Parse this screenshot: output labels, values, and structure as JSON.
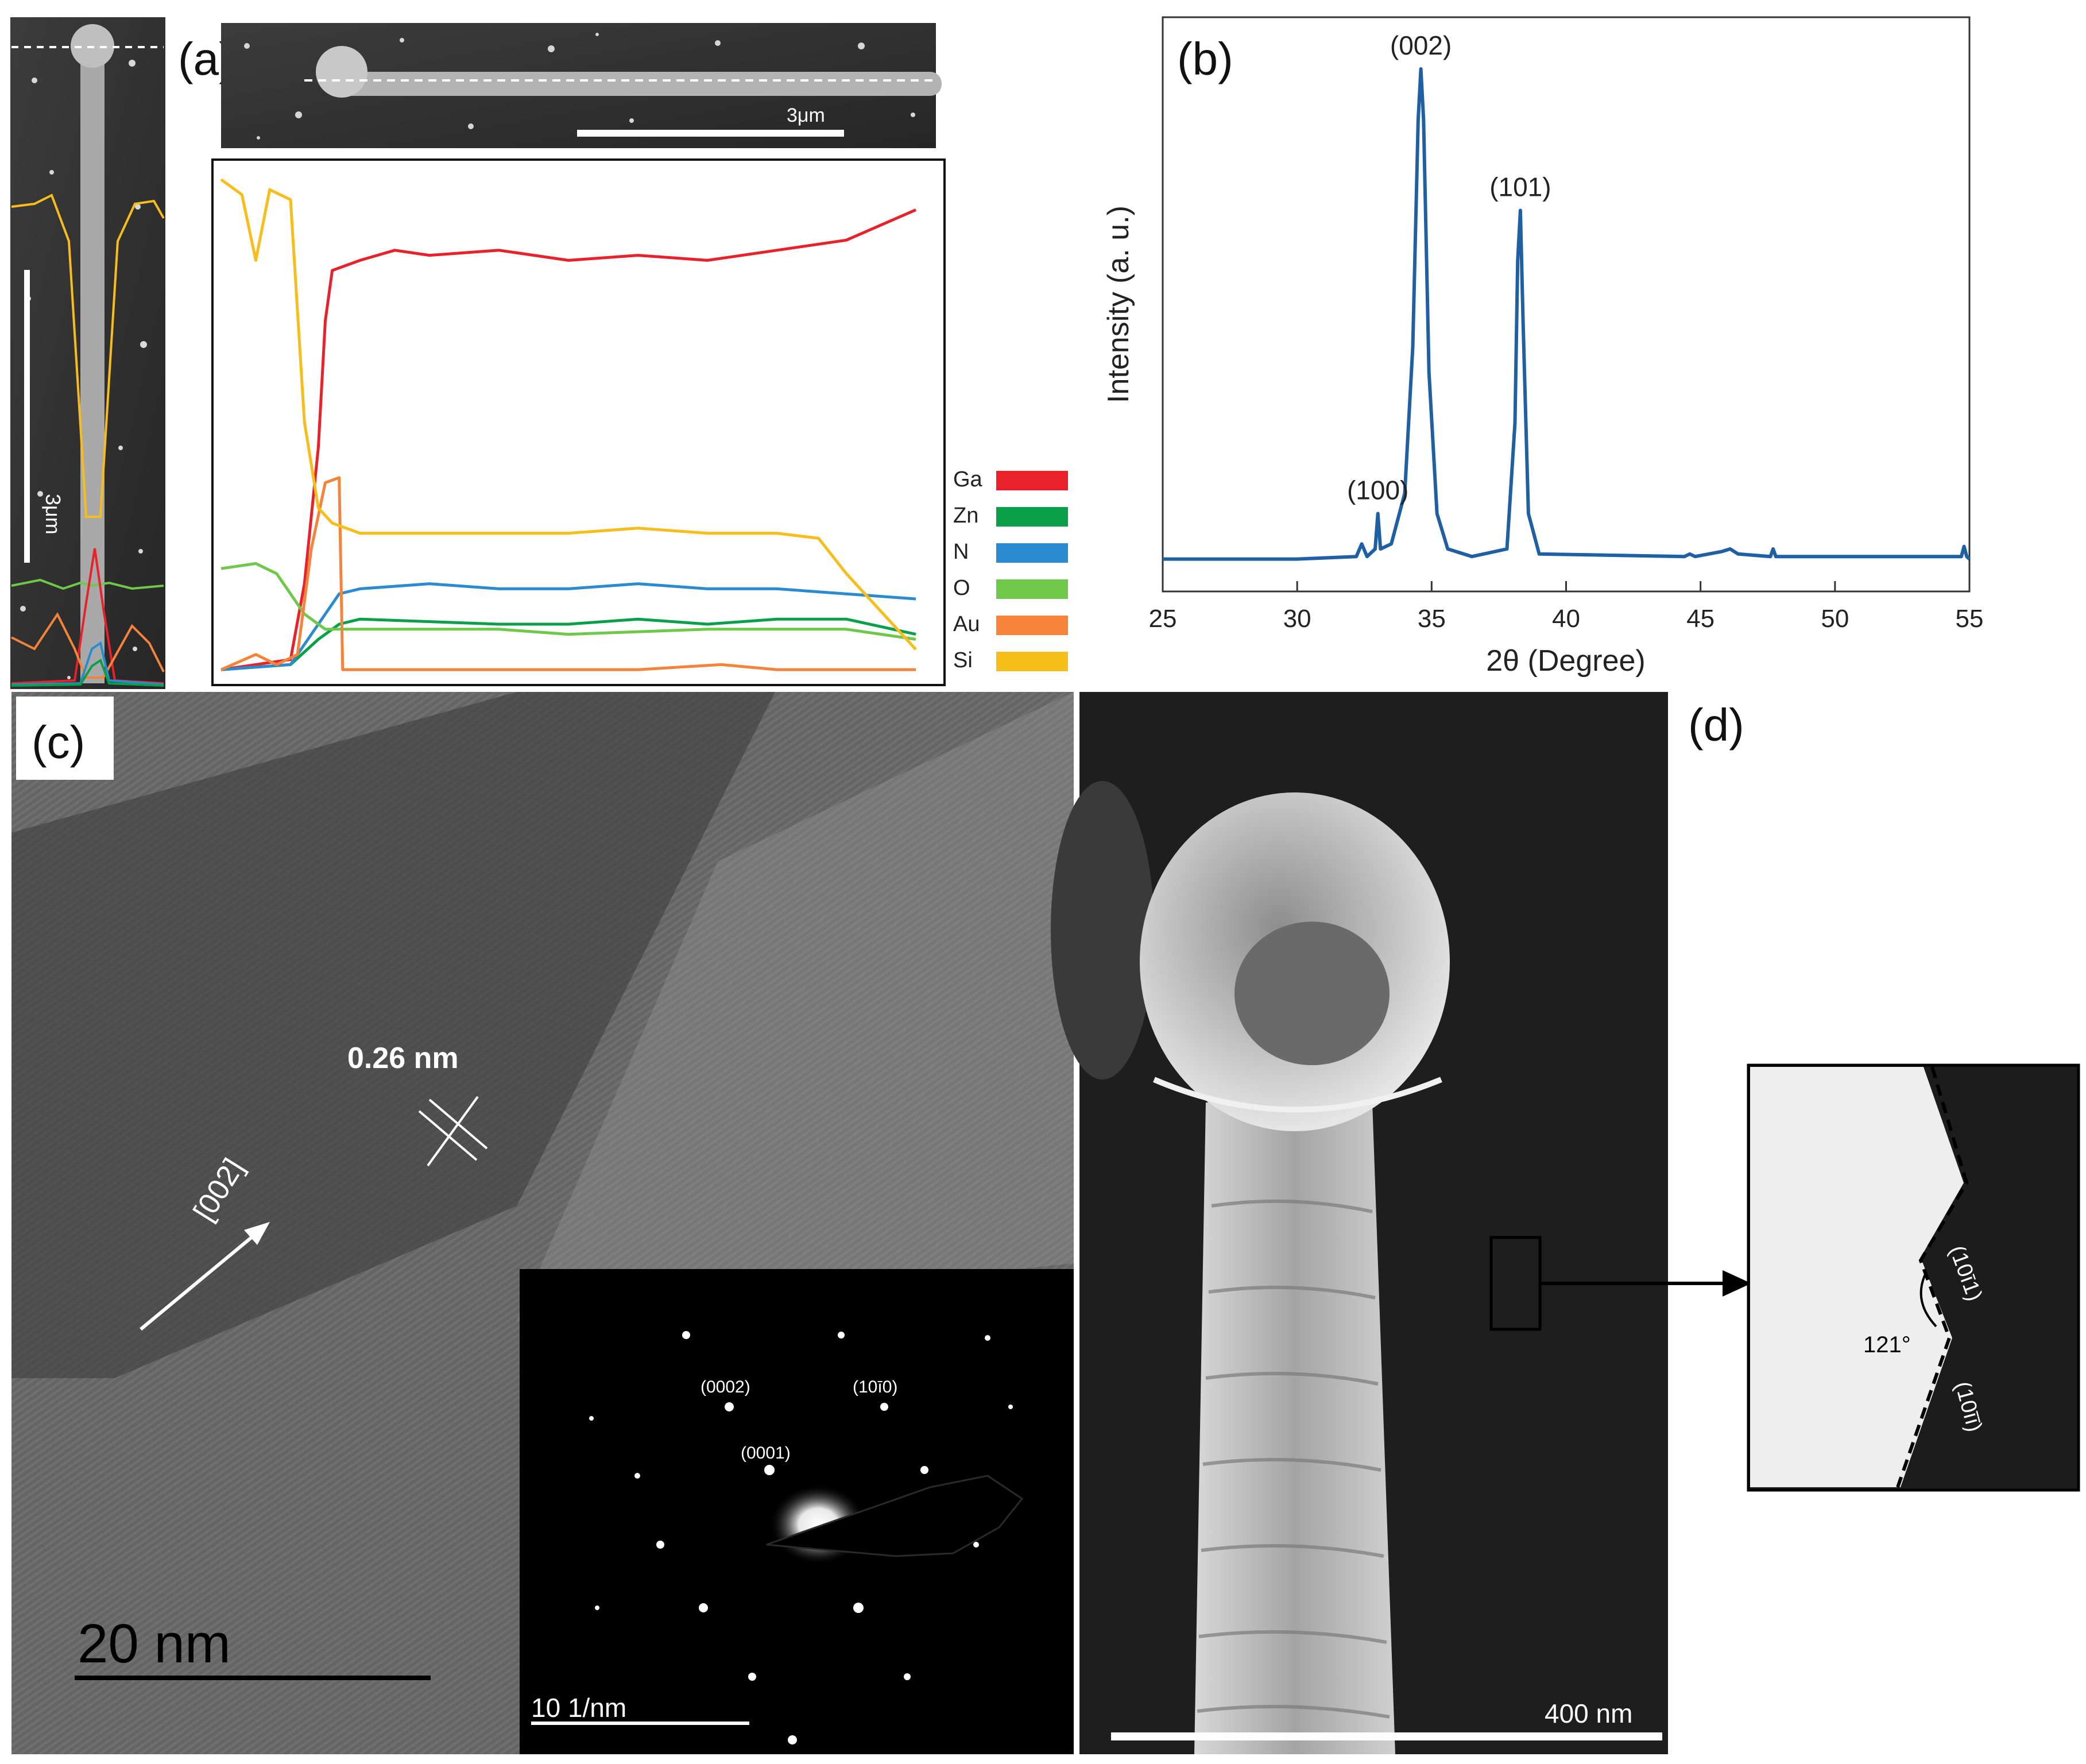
{
  "panels": {
    "a": {
      "label": "(a)",
      "scale_label_top": "3μm",
      "scale_label_side": "3μm",
      "legend": [
        {
          "name": "Ga",
          "color": "#e8212b"
        },
        {
          "name": "Zn",
          "color": "#0aa04a"
        },
        {
          "name": "N",
          "color": "#2a8bd0"
        },
        {
          "name": "O",
          "color": "#6fc84a"
        },
        {
          "name": "Au",
          "color": "#f5843a"
        },
        {
          "name": "Si",
          "color": "#f7bd1a"
        }
      ]
    },
    "b": {
      "label": "(b)"
    },
    "c": {
      "label": "(c)",
      "spacing_label": "0.26 nm",
      "direction_label": "[002]",
      "scale_label": "20 nm",
      "saed": {
        "spots": [
          "(0002)",
          "(10ī0)",
          "(0001)"
        ],
        "scale_label": "10 1/nm"
      }
    },
    "d": {
      "label": "(d)",
      "scale_label": "400 nm",
      "inset": {
        "angle_label": "121°",
        "facet_top": "(10ī1)",
        "facet_bottom": "(10īī)"
      }
    }
  },
  "chart_data": {
    "type": "line",
    "title": "",
    "xlabel": "2θ (Degree)",
    "ylabel": "Intensity (a. u.)",
    "xlim": [
      25,
      55
    ],
    "xticks": [
      25,
      30,
      35,
      40,
      45,
      50,
      55
    ],
    "yticks_shown": false,
    "grid": false,
    "series": [
      {
        "color": "#1f5fa3",
        "points": [
          [
            25,
            0.03
          ],
          [
            30,
            0.03
          ],
          [
            32.2,
            0.035
          ],
          [
            32.4,
            0.06
          ],
          [
            32.6,
            0.035
          ],
          [
            32.9,
            0.05
          ],
          [
            33.0,
            0.12
          ],
          [
            33.1,
            0.05
          ],
          [
            33.5,
            0.06
          ],
          [
            34.0,
            0.16
          ],
          [
            34.3,
            0.45
          ],
          [
            34.5,
            0.9
          ],
          [
            34.6,
            1.0
          ],
          [
            34.7,
            0.9
          ],
          [
            34.9,
            0.4
          ],
          [
            35.2,
            0.12
          ],
          [
            35.6,
            0.05
          ],
          [
            36.5,
            0.035
          ],
          [
            37.8,
            0.05
          ],
          [
            38.1,
            0.3
          ],
          [
            38.2,
            0.62
          ],
          [
            38.3,
            0.72
          ],
          [
            38.4,
            0.5
          ],
          [
            38.6,
            0.12
          ],
          [
            39,
            0.04
          ],
          [
            44.4,
            0.035
          ],
          [
            44.6,
            0.04
          ],
          [
            44.8,
            0.035
          ],
          [
            45.8,
            0.045
          ],
          [
            46.1,
            0.05
          ],
          [
            46.4,
            0.04
          ],
          [
            47.6,
            0.035
          ],
          [
            47.7,
            0.05
          ],
          [
            47.8,
            0.035
          ],
          [
            54.7,
            0.035
          ],
          [
            54.8,
            0.055
          ],
          [
            54.9,
            0.035
          ],
          [
            55,
            0.03
          ]
        ]
      }
    ],
    "annotations": [
      {
        "text": "(100)",
        "x": 33.0
      },
      {
        "text": "(002)",
        "x": 34.6
      },
      {
        "text": "(101)",
        "x": 38.3
      }
    ]
  },
  "linescan_data": {
    "type": "line",
    "xlim": [
      0,
      100
    ],
    "ylim": [
      0,
      100
    ],
    "series": [
      {
        "name": "Ga",
        "points": [
          [
            0,
            1
          ],
          [
            10,
            3
          ],
          [
            12,
            18
          ],
          [
            14,
            45
          ],
          [
            15,
            70
          ],
          [
            16,
            80
          ],
          [
            20,
            82
          ],
          [
            25,
            84
          ],
          [
            30,
            83
          ],
          [
            40,
            84
          ],
          [
            50,
            82
          ],
          [
            60,
            83
          ],
          [
            70,
            82
          ],
          [
            80,
            84
          ],
          [
            90,
            86
          ],
          [
            100,
            92
          ]
        ]
      },
      {
        "name": "Zn",
        "points": [
          [
            0,
            1
          ],
          [
            10,
            2
          ],
          [
            14,
            7
          ],
          [
            17,
            10
          ],
          [
            20,
            11
          ],
          [
            40,
            10
          ],
          [
            50,
            10
          ],
          [
            60,
            11
          ],
          [
            70,
            10
          ],
          [
            80,
            11
          ],
          [
            90,
            11
          ],
          [
            100,
            8
          ]
        ]
      },
      {
        "name": "N",
        "points": [
          [
            0,
            1
          ],
          [
            10,
            2
          ],
          [
            14,
            10
          ],
          [
            17,
            16
          ],
          [
            20,
            17
          ],
          [
            30,
            18
          ],
          [
            40,
            17
          ],
          [
            50,
            17
          ],
          [
            60,
            18
          ],
          [
            70,
            17
          ],
          [
            80,
            17
          ],
          [
            90,
            16
          ],
          [
            100,
            15
          ]
        ]
      },
      {
        "name": "O",
        "points": [
          [
            0,
            21
          ],
          [
            5,
            22
          ],
          [
            8,
            20
          ],
          [
            12,
            12
          ],
          [
            15,
            9
          ],
          [
            20,
            9
          ],
          [
            40,
            9
          ],
          [
            50,
            8
          ],
          [
            70,
            9
          ],
          [
            90,
            9
          ],
          [
            100,
            7
          ]
        ]
      },
      {
        "name": "Au",
        "points": [
          [
            0,
            1
          ],
          [
            5,
            4
          ],
          [
            8,
            2
          ],
          [
            11,
            4
          ],
          [
            13,
            25
          ],
          [
            15,
            38
          ],
          [
            17,
            39
          ],
          [
            17.5,
            1
          ],
          [
            30,
            1
          ],
          [
            60,
            1
          ],
          [
            72,
            2
          ],
          [
            80,
            1
          ],
          [
            100,
            1
          ]
        ]
      },
      {
        "name": "Si",
        "points": [
          [
            0,
            98
          ],
          [
            3,
            95
          ],
          [
            5,
            82
          ],
          [
            7,
            96
          ],
          [
            10,
            94
          ],
          [
            12,
            50
          ],
          [
            14,
            33
          ],
          [
            16,
            30
          ],
          [
            20,
            28
          ],
          [
            30,
            28
          ],
          [
            40,
            28
          ],
          [
            50,
            28
          ],
          [
            60,
            29
          ],
          [
            70,
            28
          ],
          [
            80,
            28
          ],
          [
            86,
            27
          ],
          [
            90,
            20
          ],
          [
            100,
            5
          ]
        ]
      }
    ]
  }
}
